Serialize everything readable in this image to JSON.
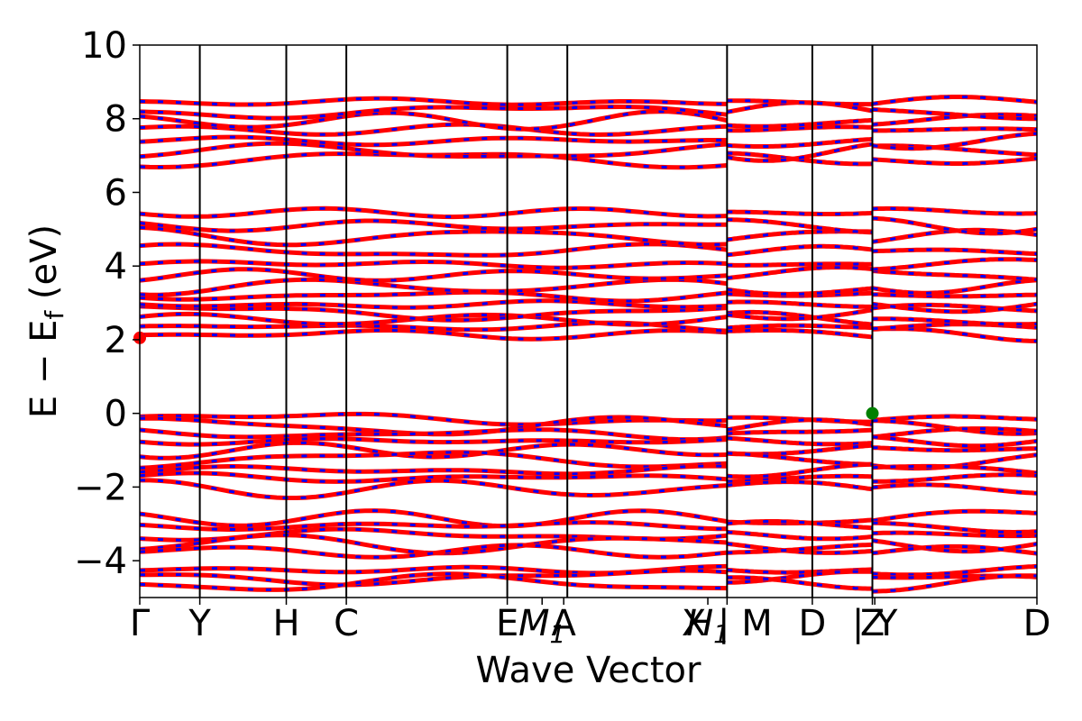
{
  "chart_data": {
    "type": "line",
    "title": "",
    "xlabel": "Wave Vector",
    "ylabel_parts": {
      "main": "E − E",
      "sub": "f",
      "unit": " (eV)"
    },
    "ylim": [
      -5,
      10
    ],
    "yticks": [
      10,
      8,
      6,
      4,
      2,
      0,
      -2,
      -4
    ],
    "ytick_labels": [
      "10",
      "8",
      "6",
      "4",
      "2",
      "0",
      "−2",
      "−4"
    ],
    "grid": false,
    "legend": "none",
    "colors": {
      "band_primary": "#ff0000",
      "band_dash": "#0000ff",
      "vbm_marker": "#008000",
      "cbm_marker": "#ff0000",
      "segment_line": "#000000"
    },
    "kpath": [
      {
        "label": "Γ",
        "x": 0.0
      },
      {
        "label": "Y",
        "x": 0.5
      },
      {
        "label": "H",
        "x": 1.22
      },
      {
        "label": "C",
        "x": 1.72
      },
      {
        "label": "E",
        "x": 3.06
      },
      {
        "label": "M",
        "x": 3.35,
        "italic": true,
        "sub": "1"
      },
      {
        "label": "A",
        "x": 3.53
      },
      {
        "label": "H",
        "x": 4.73,
        "italic": true,
        "sub": "1"
      },
      {
        "label": "X | M",
        "x": 4.89
      },
      {
        "label": "D",
        "x": 5.6
      },
      {
        "label": "Z",
        "x": 6.1
      },
      {
        "label": "| Y",
        "x": 6.12
      },
      {
        "label": "D",
        "x": 7.47
      }
    ],
    "segment_lines_x": [
      0.5,
      1.22,
      1.72,
      3.06,
      3.56,
      4.89,
      5.6,
      6.1
    ],
    "xlim": [
      0,
      7.47
    ],
    "segments": [
      {
        "x": [
          0.0,
          4.89
        ]
      },
      {
        "x": [
          4.89,
          6.1
        ]
      },
      {
        "x": [
          6.1,
          7.47
        ]
      }
    ],
    "valence_band_energies": [
      -0.15,
      -0.35,
      -0.55,
      -0.75,
      -1.0,
      -1.25,
      -1.55,
      -1.75,
      -2.05,
      -2.85,
      -3.05,
      -3.3,
      -3.55,
      -3.75,
      -4.25,
      -4.45,
      -4.6
    ],
    "conduction_band_energies": [
      2.15,
      2.35,
      2.55,
      2.75,
      2.95,
      3.2,
      3.45,
      3.75,
      4.05,
      4.4,
      4.8,
      5.1,
      5.45,
      6.9,
      7.1,
      7.4,
      7.7,
      7.95,
      8.2,
      8.45
    ],
    "markers": [
      {
        "name": "cbm",
        "x": 0.0,
        "y": 2.05
      },
      {
        "name": "vbm",
        "x": 6.1,
        "y": 0.0
      }
    ]
  }
}
